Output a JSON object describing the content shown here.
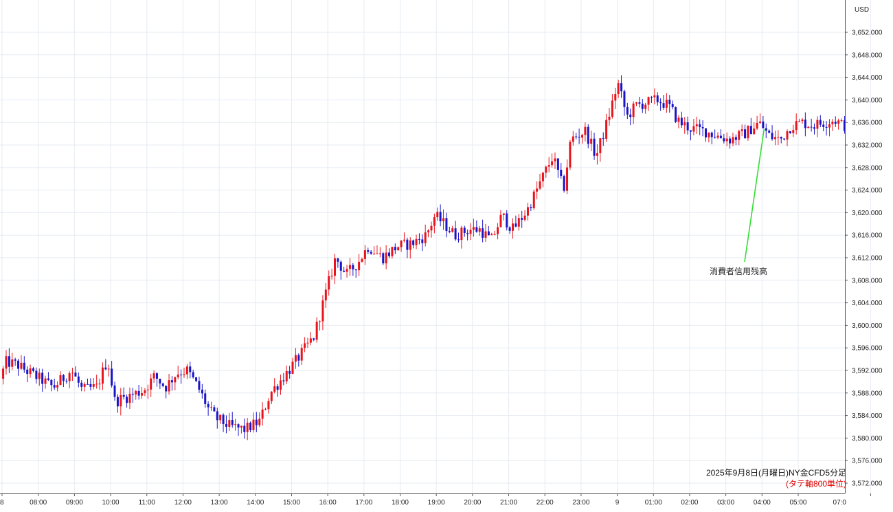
{
  "currency_label": "USD",
  "caption": {
    "line1": "2025年9月8日(月曜日)NY金CFD5分足",
    "line2": "(タテ軸800単位)"
  },
  "colors": {
    "up": "#e8141c",
    "down": "#1a14c8",
    "annotation_line": "#33dd33"
  },
  "chart_data": {
    "type": "candlestick",
    "y_unit": "USD",
    "ylim": [
      3570.5,
      3654
    ],
    "y_ticks": [
      "3,572.000",
      "3,576.000",
      "3,580.000",
      "3,584.000",
      "3,588.000",
      "3,592.000",
      "3,596.000",
      "3,600.000",
      "3,604.000",
      "3,608.000",
      "3,612.000",
      "3,616.000",
      "3,620.000",
      "3,624.000",
      "3,628.000",
      "3,632.000",
      "3,636.000",
      "3,640.000",
      "3,644.000",
      "3,648.000",
      "3,652.000"
    ],
    "y_tick_values": [
      3572,
      3576,
      3580,
      3584,
      3588,
      3592,
      3596,
      3600,
      3604,
      3608,
      3612,
      3616,
      3620,
      3624,
      3628,
      3632,
      3636,
      3640,
      3644,
      3648,
      3652
    ],
    "x_ticks": [
      "8",
      "08:00",
      "09:00",
      "10:00",
      "11:00",
      "12:00",
      "13:00",
      "14:00",
      "15:00",
      "16:00",
      "17:00",
      "18:00",
      "19:00",
      "20:00",
      "21:00",
      "22:00",
      "23:00",
      "9",
      "01:00",
      "02:00",
      "03:00",
      "04:00",
      "05:00",
      "07:0"
    ],
    "x_tick_hours": [
      7,
      8,
      9,
      10,
      11,
      12,
      13,
      14,
      15,
      16,
      17,
      18,
      19,
      20,
      21,
      22,
      23,
      24,
      25,
      26,
      27,
      28,
      29,
      31
    ],
    "x_range_hours": [
      7.03,
      30.3
    ],
    "grid": true,
    "annotation": {
      "text": "消費者信用残高",
      "time_hour": 28.0,
      "price": 3635.8
    },
    "candles_close_profile": [
      [
        7.0,
        3590
      ],
      [
        7.2,
        3593.5
      ],
      [
        7.5,
        3593
      ],
      [
        8.0,
        3591
      ],
      [
        8.5,
        3589
      ],
      [
        9.0,
        3592
      ],
      [
        9.3,
        3588.5
      ],
      [
        9.7,
        3589
      ],
      [
        10.0,
        3594
      ],
      [
        10.2,
        3586.5
      ],
      [
        10.6,
        3587.5
      ],
      [
        11.0,
        3588.5
      ],
      [
        11.3,
        3591
      ],
      [
        11.6,
        3589
      ],
      [
        11.9,
        3591.5
      ],
      [
        12.2,
        3592
      ],
      [
        12.5,
        3589
      ],
      [
        12.8,
        3585
      ],
      [
        13.0,
        3583.5
      ],
      [
        13.4,
        3582
      ],
      [
        13.8,
        3581.5
      ],
      [
        14.2,
        3583
      ],
      [
        14.5,
        3588
      ],
      [
        15.0,
        3592
      ],
      [
        15.3,
        3594.5
      ],
      [
        15.7,
        3598
      ],
      [
        16.0,
        3605
      ],
      [
        16.3,
        3612
      ],
      [
        16.6,
        3609
      ],
      [
        16.9,
        3611
      ],
      [
        17.2,
        3614
      ],
      [
        17.6,
        3612
      ],
      [
        18.0,
        3614
      ],
      [
        18.4,
        3614.5
      ],
      [
        18.8,
        3616
      ],
      [
        19.05,
        3619.5
      ],
      [
        19.3,
        3618
      ],
      [
        19.6,
        3616
      ],
      [
        20.0,
        3617
      ],
      [
        20.3,
        3617
      ],
      [
        20.6,
        3615
      ],
      [
        20.9,
        3619.5
      ],
      [
        21.2,
        3617
      ],
      [
        21.6,
        3620.5
      ],
      [
        22.0,
        3626
      ],
      [
        22.3,
        3630
      ],
      [
        22.6,
        3624
      ],
      [
        22.8,
        3633
      ],
      [
        23.2,
        3634.5
      ],
      [
        23.5,
        3630
      ],
      [
        23.8,
        3636
      ],
      [
        24.1,
        3643
      ],
      [
        24.35,
        3637
      ],
      [
        24.6,
        3639
      ],
      [
        24.9,
        3639.5
      ],
      [
        25.2,
        3640
      ],
      [
        25.5,
        3639
      ],
      [
        25.8,
        3636
      ],
      [
        26.1,
        3635
      ],
      [
        26.5,
        3634.5
      ],
      [
        26.9,
        3633.5
      ],
      [
        27.2,
        3633
      ],
      [
        27.6,
        3634
      ],
      [
        28.0,
        3636
      ],
      [
        28.3,
        3633.5
      ],
      [
        28.6,
        3633
      ],
      [
        28.9,
        3635.5
      ],
      [
        29.2,
        3636
      ],
      [
        29.5,
        3635.5
      ],
      [
        29.8,
        3636
      ],
      [
        30.1,
        3636.5
      ],
      [
        30.3,
        3635.5
      ]
    ]
  }
}
